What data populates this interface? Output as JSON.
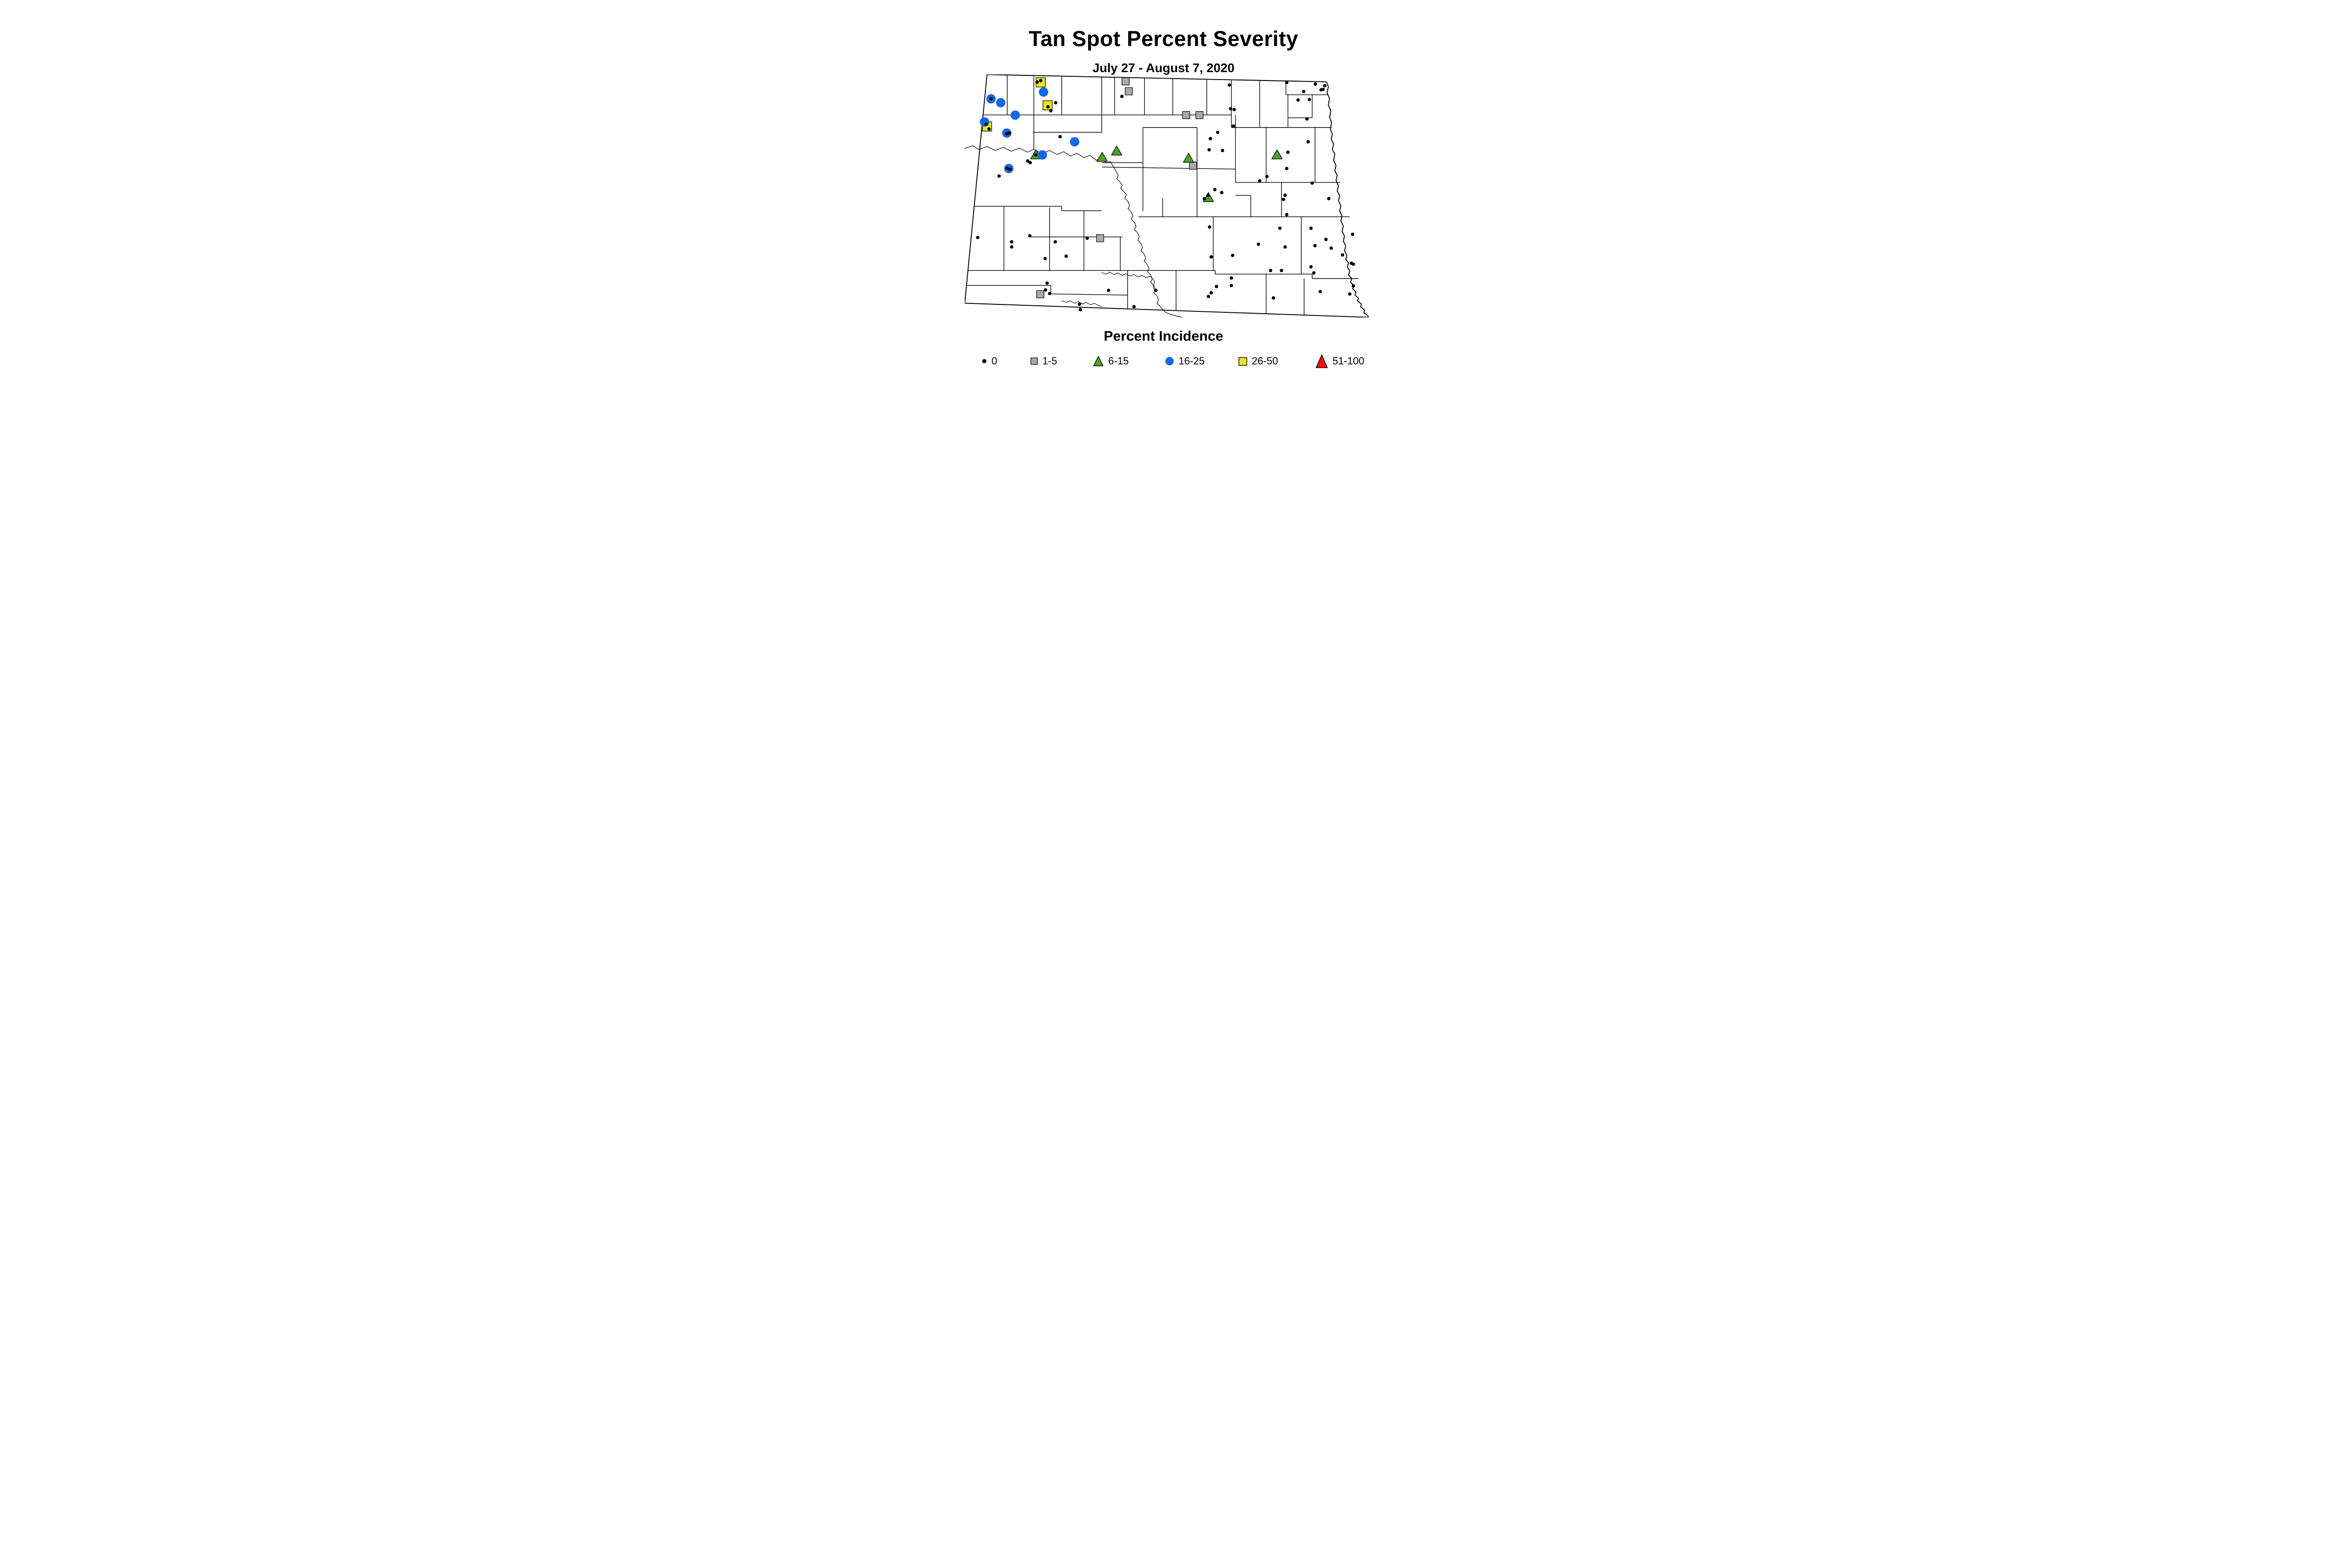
{
  "title": "Tan Spot Percent Severity",
  "subtitle": "July 27 - August 7, 2020",
  "legend": {
    "title": "Percent Incidence",
    "items": [
      {
        "label": "0",
        "shape": "dot",
        "color": "#000000"
      },
      {
        "label": "1-5",
        "shape": "square",
        "color": "#a9a9a9"
      },
      {
        "label": "6-15",
        "shape": "triangle",
        "color": "#4ba32b"
      },
      {
        "label": "16-25",
        "shape": "circle",
        "color": "#1768e3"
      },
      {
        "label": "26-50",
        "shape": "square",
        "color": "#e9e41c"
      },
      {
        "label": "51-100",
        "shape": "triangle",
        "color": "#f90d0a"
      }
    ]
  },
  "map": {
    "region": "North Dakota counties",
    "units": "percent of map bounding box, x rightward, y downward",
    "marker_categories": [
      {
        "key": "incidence_26_50",
        "legend_label": "26-50",
        "shape": "square",
        "color": "#e9e41c",
        "points": [
          [
            18.8,
            3.2
          ],
          [
            20.5,
            12.7
          ],
          [
            5.5,
            21.4
          ]
        ]
      },
      {
        "key": "incidence_1_5",
        "legend_label": "1-5",
        "shape": "square",
        "color": "#a9a9a9",
        "points": [
          [
            39.8,
            2.8
          ],
          [
            40.6,
            6.9
          ],
          [
            54.8,
            16.7
          ],
          [
            58.1,
            16.7
          ],
          [
            56.5,
            37.5
          ],
          [
            33.5,
            67.4
          ],
          [
            18.7,
            90.5
          ]
        ]
      },
      {
        "key": "incidence_6_15",
        "legend_label": "6-15",
        "shape": "triangle",
        "color": "#4ba32b",
        "points": [
          [
            17.6,
            33.1
          ],
          [
            34.0,
            34.1
          ],
          [
            37.6,
            31.5
          ],
          [
            55.4,
            34.5
          ],
          [
            60.3,
            50.7
          ],
          [
            77.3,
            33.1
          ]
        ]
      },
      {
        "key": "incidence_16_25",
        "legend_label": "16-25",
        "shape": "circle",
        "color": "#1768e3",
        "points": [
          [
            19.5,
            7.2
          ],
          [
            6.5,
            10.0
          ],
          [
            8.9,
            11.6
          ],
          [
            12.5,
            16.7
          ],
          [
            4.9,
            19.5
          ],
          [
            10.4,
            24.1
          ],
          [
            27.2,
            27.7
          ],
          [
            19.2,
            33.1
          ],
          [
            10.9,
            38.7
          ]
        ]
      },
      {
        "key": "incidence_0",
        "legend_label": "0",
        "shape": "dot",
        "color": "#000000",
        "points": [
          [
            17.9,
            3.1
          ],
          [
            18.8,
            2.5
          ],
          [
            6.5,
            10.0
          ],
          [
            20.6,
            13.3
          ],
          [
            22.5,
            11.6
          ],
          [
            21.3,
            14.9
          ],
          [
            5.3,
            20.4
          ],
          [
            6.0,
            22.4
          ],
          [
            10.4,
            24.4
          ],
          [
            11.0,
            24.1
          ],
          [
            23.6,
            25.6
          ],
          [
            17.6,
            33.1
          ],
          [
            15.6,
            35.6
          ],
          [
            16.2,
            36.3
          ],
          [
            10.5,
            38.6
          ],
          [
            11.2,
            39.0
          ],
          [
            8.5,
            41.8
          ],
          [
            38.9,
            9.0
          ],
          [
            65.5,
            4.3
          ],
          [
            65.8,
            14.1
          ],
          [
            66.7,
            14.4
          ],
          [
            66.5,
            21.2
          ],
          [
            62.6,
            23.8
          ],
          [
            60.8,
            26.4
          ],
          [
            60.5,
            31.0
          ],
          [
            63.8,
            31.3
          ],
          [
            60.2,
            49.8
          ],
          [
            59.3,
            51.1
          ],
          [
            61.9,
            47.4
          ],
          [
            63.6,
            48.6
          ],
          [
            79.7,
            3.3
          ],
          [
            86.8,
            3.9
          ],
          [
            89.1,
            4.6
          ],
          [
            88.2,
            6.3
          ],
          [
            88.7,
            6.1
          ],
          [
            83.9,
            7.0
          ],
          [
            82.5,
            10.5
          ],
          [
            85.3,
            10.3
          ],
          [
            84.7,
            18.3
          ],
          [
            85.0,
            27.7
          ],
          [
            86.0,
            44.7
          ],
          [
            90.1,
            51.1
          ],
          [
            80.0,
            32.0
          ],
          [
            79.7,
            38.7
          ],
          [
            74.8,
            42.0
          ],
          [
            73.0,
            43.8
          ],
          [
            79.3,
            49.7
          ],
          [
            78.9,
            51.4
          ],
          [
            79.7,
            57.7
          ],
          [
            78.0,
            63.3
          ],
          [
            85.7,
            63.3
          ],
          [
            96.0,
            65.8
          ],
          [
            89.4,
            67.9
          ],
          [
            72.7,
            69.9
          ],
          [
            79.3,
            71.0
          ],
          [
            86.7,
            70.5
          ],
          [
            90.7,
            71.5
          ],
          [
            93.5,
            74.3
          ],
          [
            95.7,
            77.7
          ],
          [
            96.2,
            78.1
          ],
          [
            85.7,
            79.2
          ],
          [
            75.7,
            80.7
          ],
          [
            78.4,
            80.7
          ],
          [
            86.4,
            81.7
          ],
          [
            96.2,
            87.0
          ],
          [
            95.3,
            90.4
          ],
          [
            88.0,
            89.4
          ],
          [
            76.4,
            92.0
          ],
          [
            60.6,
            62.8
          ],
          [
            61.0,
            75.1
          ],
          [
            66.3,
            74.5
          ],
          [
            66.0,
            83.8
          ],
          [
            66.0,
            86.9
          ],
          [
            62.3,
            87.3
          ],
          [
            61.0,
            89.9
          ],
          [
            60.3,
            91.4
          ],
          [
            35.6,
            88.9
          ],
          [
            47.3,
            88.9
          ],
          [
            41.9,
            95.6
          ],
          [
            3.2,
            67.1
          ],
          [
            16.1,
            66.4
          ],
          [
            11.6,
            68.9
          ],
          [
            11.6,
            71.0
          ],
          [
            22.4,
            68.9
          ],
          [
            25.1,
            74.8
          ],
          [
            19.9,
            75.8
          ],
          [
            30.3,
            67.4
          ],
          [
            20.4,
            85.9
          ],
          [
            20.0,
            88.7
          ],
          [
            21.0,
            90.2
          ],
          [
            28.4,
            94.6
          ],
          [
            28.6,
            96.8
          ]
        ]
      },
      {
        "key": "incidence_51_100",
        "legend_label": "51-100",
        "shape": "triangle",
        "color": "#f90d0a",
        "points": []
      }
    ]
  }
}
